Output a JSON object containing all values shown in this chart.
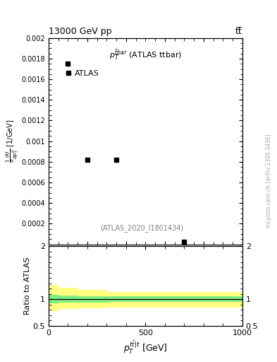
{
  "title_left": "13000 GeV pp",
  "title_right": "tt̅",
  "annotation": "(ATLAS_2020_I1801434)",
  "legend_label": "ATLAS",
  "plot_label": "p$_T^{\\bar{t}bar}$ (ATLAS ttbar)",
  "xlabel": "p$^{tbar|t}_{T}$ [GeV]",
  "ylabel_ratio": "Ratio to ATLAS",
  "watermark": "mcplots.cern.ch [arXiv:1306.3436]",
  "main_data_x": [
    100,
    200,
    350,
    700
  ],
  "main_data_y": [
    0.00175,
    0.00082,
    0.00082,
    2.5e-05
  ],
  "xlim": [
    0,
    1000
  ],
  "ylim_main": [
    0,
    0.002
  ],
  "ylim_ratio": [
    0.5,
    2.0
  ],
  "ratio_line_y": 1.0,
  "yellow_band_x": [
    0,
    50,
    50,
    150,
    150,
    300,
    300,
    1000
  ],
  "yellow_band_lo": [
    0.78,
    0.78,
    0.82,
    0.82,
    0.83,
    0.83,
    0.85,
    0.85
  ],
  "yellow_band_hi": [
    1.27,
    1.27,
    1.22,
    1.22,
    1.17,
    1.17,
    1.13,
    1.13
  ],
  "green_band_x": [
    0,
    50,
    50,
    150,
    150,
    300,
    300,
    1000
  ],
  "green_band_lo": [
    0.93,
    0.93,
    0.94,
    0.94,
    0.94,
    0.94,
    0.95,
    0.95
  ],
  "green_band_hi": [
    1.08,
    1.08,
    1.07,
    1.07,
    1.06,
    1.06,
    1.05,
    1.05
  ],
  "yellow_color": "#ffff80",
  "green_color": "#80ee80",
  "data_color": "black",
  "marker_style": "s",
  "marker_size": 5,
  "background_color": "white",
  "tick_fontsize": 8,
  "label_fontsize": 9,
  "annotation_fontsize": 7,
  "watermark_fontsize": 5.5,
  "yticks_main": [
    0.0,
    0.0002,
    0.0004,
    0.0006,
    0.0008,
    0.001,
    0.0012,
    0.0014,
    0.0016,
    0.0018,
    0.002
  ],
  "ytick_labels_main": [
    "",
    "0.0002",
    "0.0004",
    "0.0006",
    "0.0008",
    "0.001",
    "0.0012",
    "0.0014",
    "0.0016",
    "0.0018",
    "0.002"
  ],
  "yticks_ratio": [
    0.5,
    1.0,
    2.0
  ],
  "ytick_labels_ratio": [
    "0.5",
    "1",
    "2"
  ],
  "xticks": [
    0,
    500,
    1000
  ],
  "xtick_labels": [
    "0",
    "500",
    "1000"
  ]
}
